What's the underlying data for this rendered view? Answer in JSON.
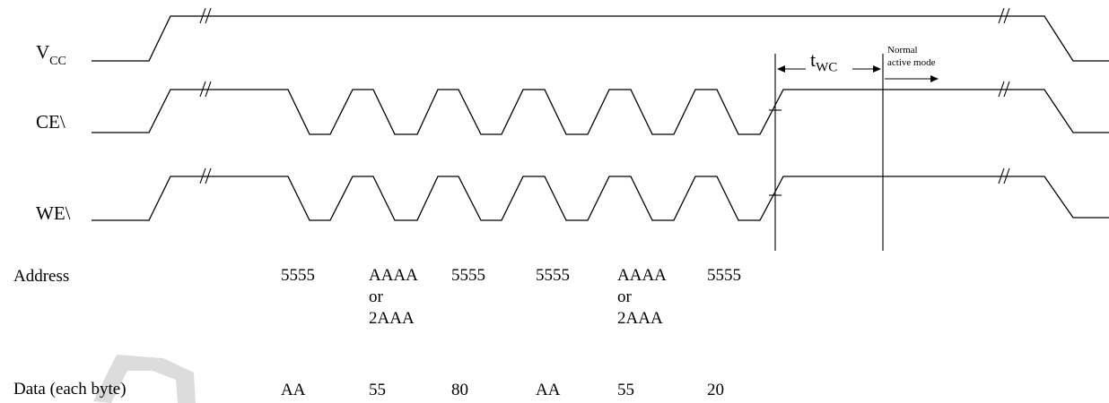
{
  "signals": [
    {
      "id": "vcc",
      "name": "V",
      "subscript": "CC"
    },
    {
      "id": "ce",
      "name": "CE\\"
    },
    {
      "id": "we",
      "name": "WE\\"
    }
  ],
  "timing": {
    "t_name": "t",
    "t_subscript": "WC",
    "normal_line1": "Normal",
    "normal_line2": "active mode"
  },
  "address": {
    "label": "Address",
    "values": [
      "5555",
      "AAAA\nor\n2AAA",
      "5555",
      "5555",
      "AAAA\nor\n2AAA",
      "5555"
    ]
  },
  "data": {
    "label": "Data (each byte)",
    "values": [
      "AA",
      "55",
      "80",
      "AA",
      "55",
      "20"
    ]
  }
}
